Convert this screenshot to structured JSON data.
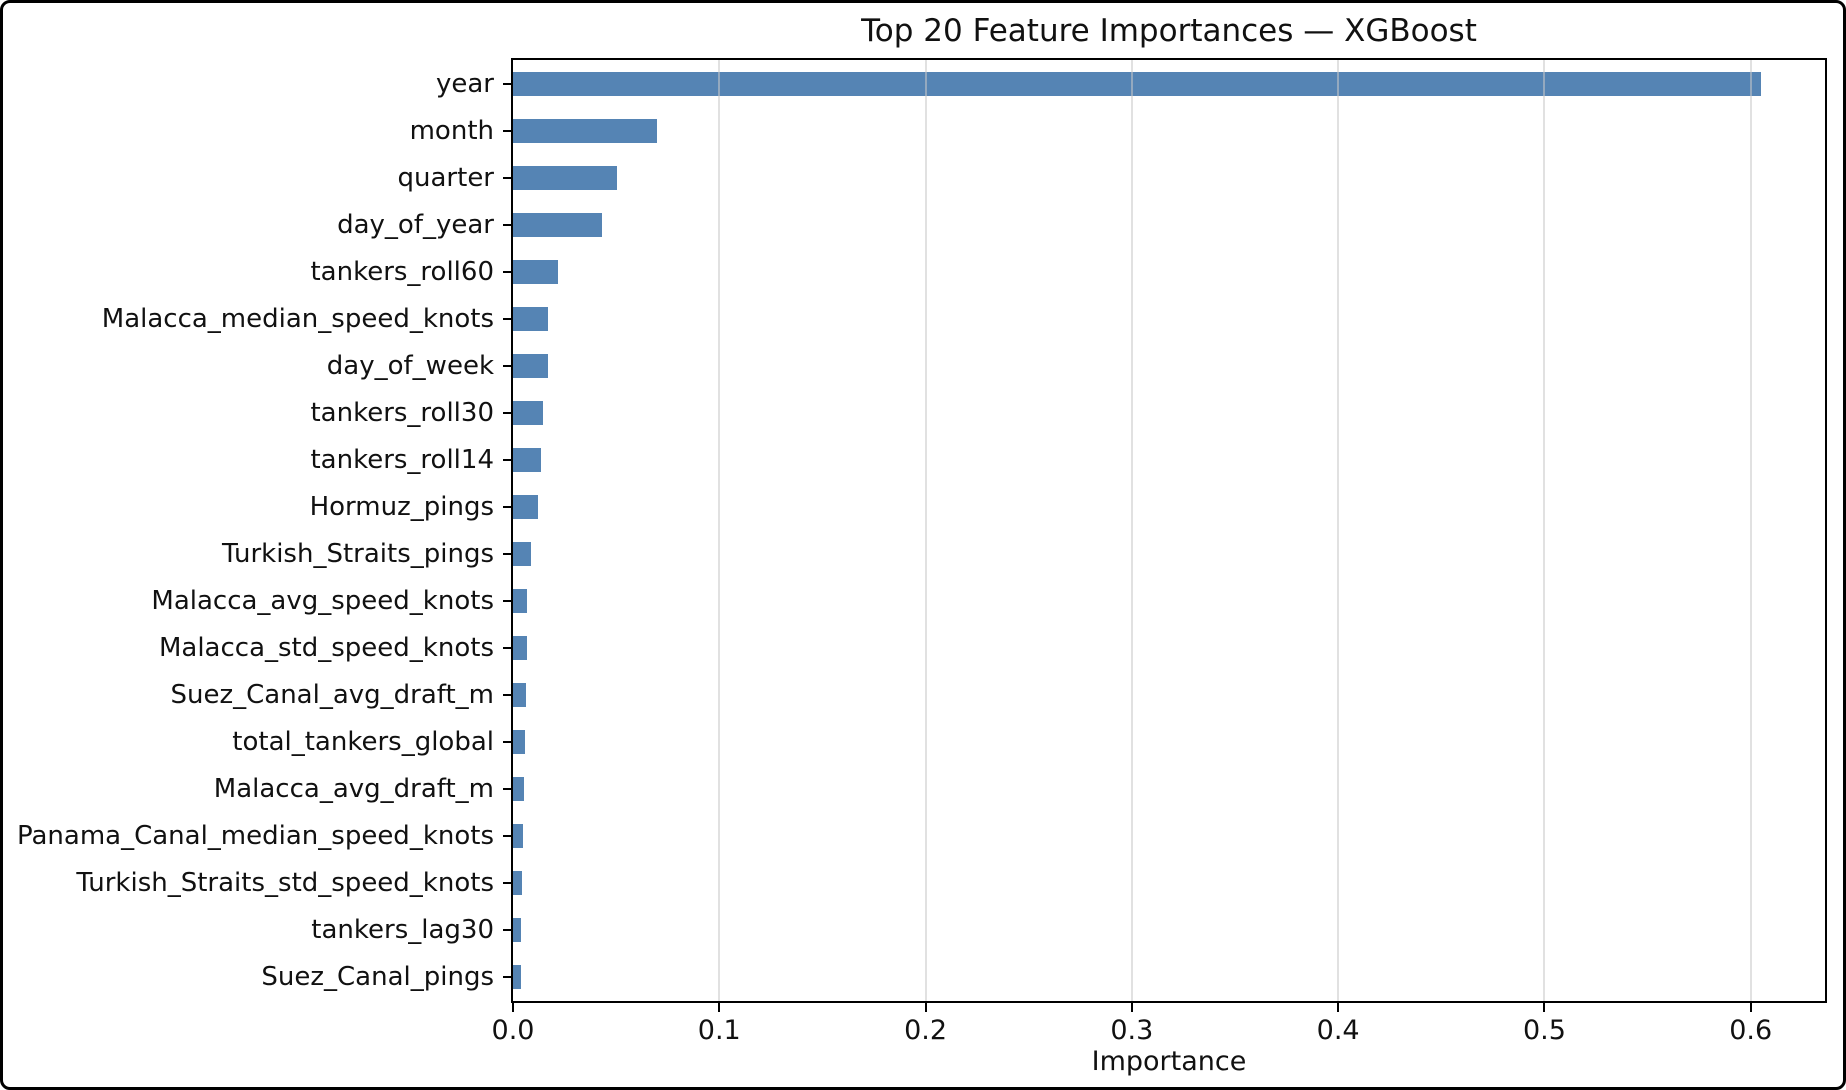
{
  "chart_data": {
    "type": "bar",
    "orientation": "horizontal",
    "title": "Top 20 Feature Importances — XGBoost",
    "xlabel": "Importance",
    "ylabel": "",
    "categories": [
      "year",
      "month",
      "quarter",
      "day_of_year",
      "tankers_roll60",
      "Malacca_median_speed_knots",
      "day_of_week",
      "tankers_roll30",
      "tankers_roll14",
      "Hormuz_pings",
      "Turkish_Straits_pings",
      "Malacca_avg_speed_knots",
      "Malacca_std_speed_knots",
      "Suez_Canal_avg_draft_m",
      "total_tankers_global",
      "Malacca_avg_draft_m",
      "Panama_Canal_median_speed_knots",
      "Turkish_Straits_std_speed_knots",
      "tankers_lag30",
      "Suez_Canal_pings"
    ],
    "values": [
      0.605,
      0.0696,
      0.0506,
      0.0431,
      0.0217,
      0.0172,
      0.017,
      0.0145,
      0.0134,
      0.0123,
      0.0086,
      0.007,
      0.0068,
      0.0064,
      0.0057,
      0.0052,
      0.0049,
      0.0044,
      0.0041,
      0.0037
    ],
    "xlim": [
      0,
      0.636
    ],
    "xticks": [
      0.0,
      0.1,
      0.2,
      0.3,
      0.4,
      0.5,
      0.6
    ],
    "xtick_labels": [
      "0.0",
      "0.1",
      "0.2",
      "0.3",
      "0.4",
      "0.5",
      "0.6"
    ],
    "legend": "none",
    "grid": "vertical",
    "colors": {
      "bar": "#5584b4",
      "spine": "#000000",
      "grid": "#c8c8c8",
      "text": "#111111",
      "background": "#ffffff"
    }
  }
}
